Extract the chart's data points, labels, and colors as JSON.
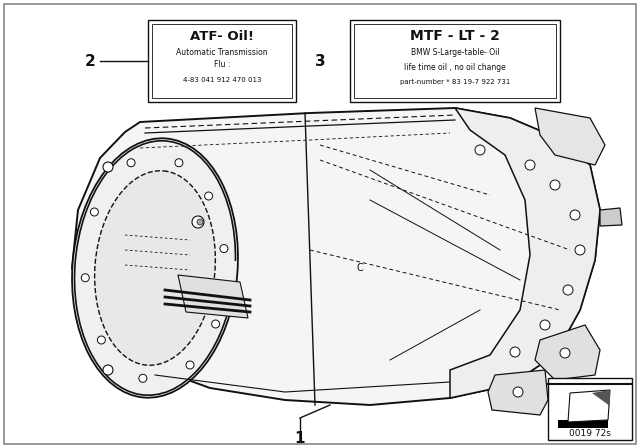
{
  "bg_color": "#ffffff",
  "label1": "1",
  "label2": "2",
  "label3": "3",
  "box2_title": "ATF- Oil!",
  "box2_line1": "Automatic Transmission",
  "box2_line2": "Flu :",
  "box2_line3": "4-83 041 912 470 013",
  "box3_title": "MTF - LT - 2",
  "box3_line1": "BMW S-Large-table- Oil",
  "box3_line2": "life time oil , no oil change",
  "box3_line3": "part-number * 83 19-7 922 731",
  "part_number": "0019 72s",
  "outer_border": true,
  "gearbox_color": "#f8f8f8",
  "line_color": "#111111"
}
